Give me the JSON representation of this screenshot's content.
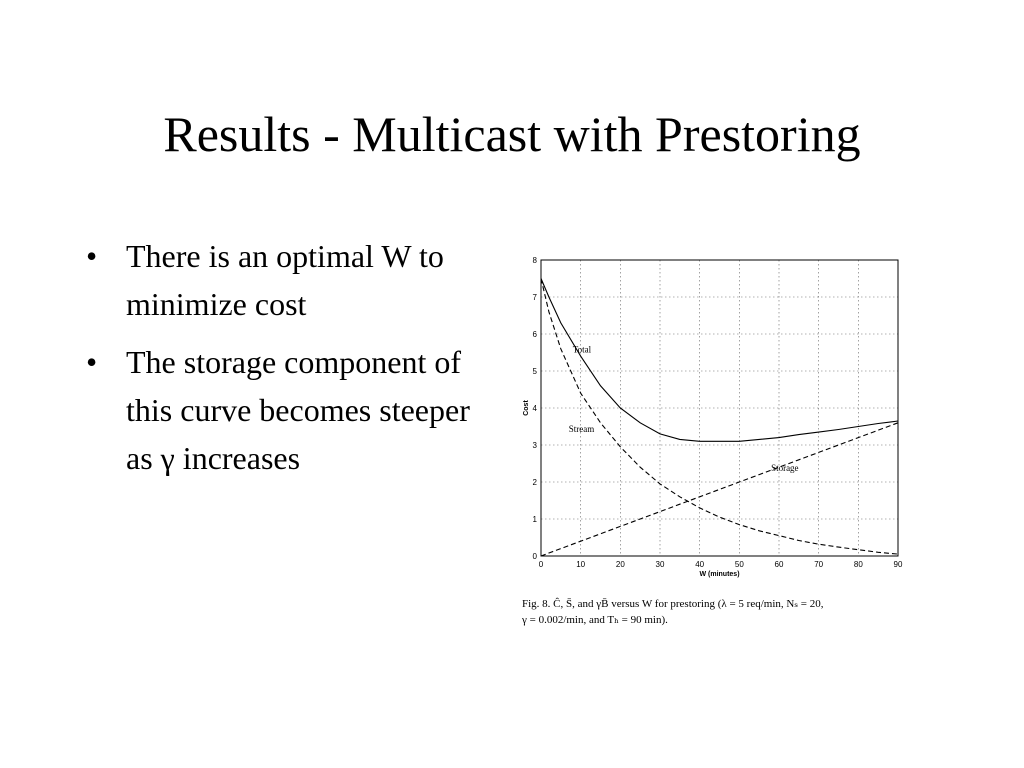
{
  "slide": {
    "title": "Results - Multicast with Prestoring",
    "bullets": [
      {
        "text": "There is an optimal W to minimize cost"
      },
      {
        "text": "The storage component of this curve becomes steeper as γ increases"
      }
    ],
    "bullet_symbol": "•"
  },
  "caption": {
    "lines": [
      "Fig. 8.    Ĉ, S̄, and γB̄ versus W  for prestoring (λ = 5 req/min, Nₛ = 20,",
      "γ = 0.002/min, and Tₕ = 90 min)."
    ]
  },
  "chart_data": {
    "type": "line",
    "xlabel": "W (minutes)",
    "ylabel": "Cost",
    "xlim": [
      0,
      90
    ],
    "ylim": [
      0,
      8
    ],
    "grid": true,
    "x_ticks": [
      0,
      10,
      20,
      30,
      40,
      50,
      60,
      70,
      80,
      90
    ],
    "y_ticks": [
      0,
      1,
      2,
      3,
      4,
      5,
      6,
      7,
      8
    ],
    "x": [
      0,
      2,
      5,
      10,
      15,
      20,
      25,
      30,
      35,
      40,
      45,
      50,
      55,
      60,
      65,
      70,
      75,
      80,
      85,
      90
    ],
    "series": [
      {
        "name": "Total",
        "style": "solid",
        "values": [
          7.5,
          7.0,
          6.3,
          5.4,
          4.6,
          4.0,
          3.6,
          3.3,
          3.15,
          3.1,
          3.1,
          3.1,
          3.15,
          3.2,
          3.28,
          3.35,
          3.42,
          3.5,
          3.58,
          3.65
        ]
      },
      {
        "name": "Stream",
        "style": "dashed",
        "values": [
          7.5,
          6.6,
          5.6,
          4.4,
          3.6,
          2.95,
          2.4,
          1.95,
          1.6,
          1.3,
          1.05,
          0.85,
          0.68,
          0.55,
          0.42,
          0.32,
          0.24,
          0.17,
          0.1,
          0.05
        ]
      },
      {
        "name": "Storage",
        "style": "dashed",
        "values": [
          0.0,
          0.08,
          0.2,
          0.4,
          0.6,
          0.8,
          1.0,
          1.2,
          1.4,
          1.6,
          1.8,
          2.0,
          2.2,
          2.4,
          2.6,
          2.8,
          3.0,
          3.2,
          3.4,
          3.6
        ]
      }
    ],
    "annotations": [
      {
        "text": "Total",
        "x": 8,
        "y": 5.5
      },
      {
        "text": "Stream",
        "x": 7,
        "y": 3.35
      },
      {
        "text": "Storage",
        "x": 58,
        "y": 2.3
      }
    ]
  }
}
